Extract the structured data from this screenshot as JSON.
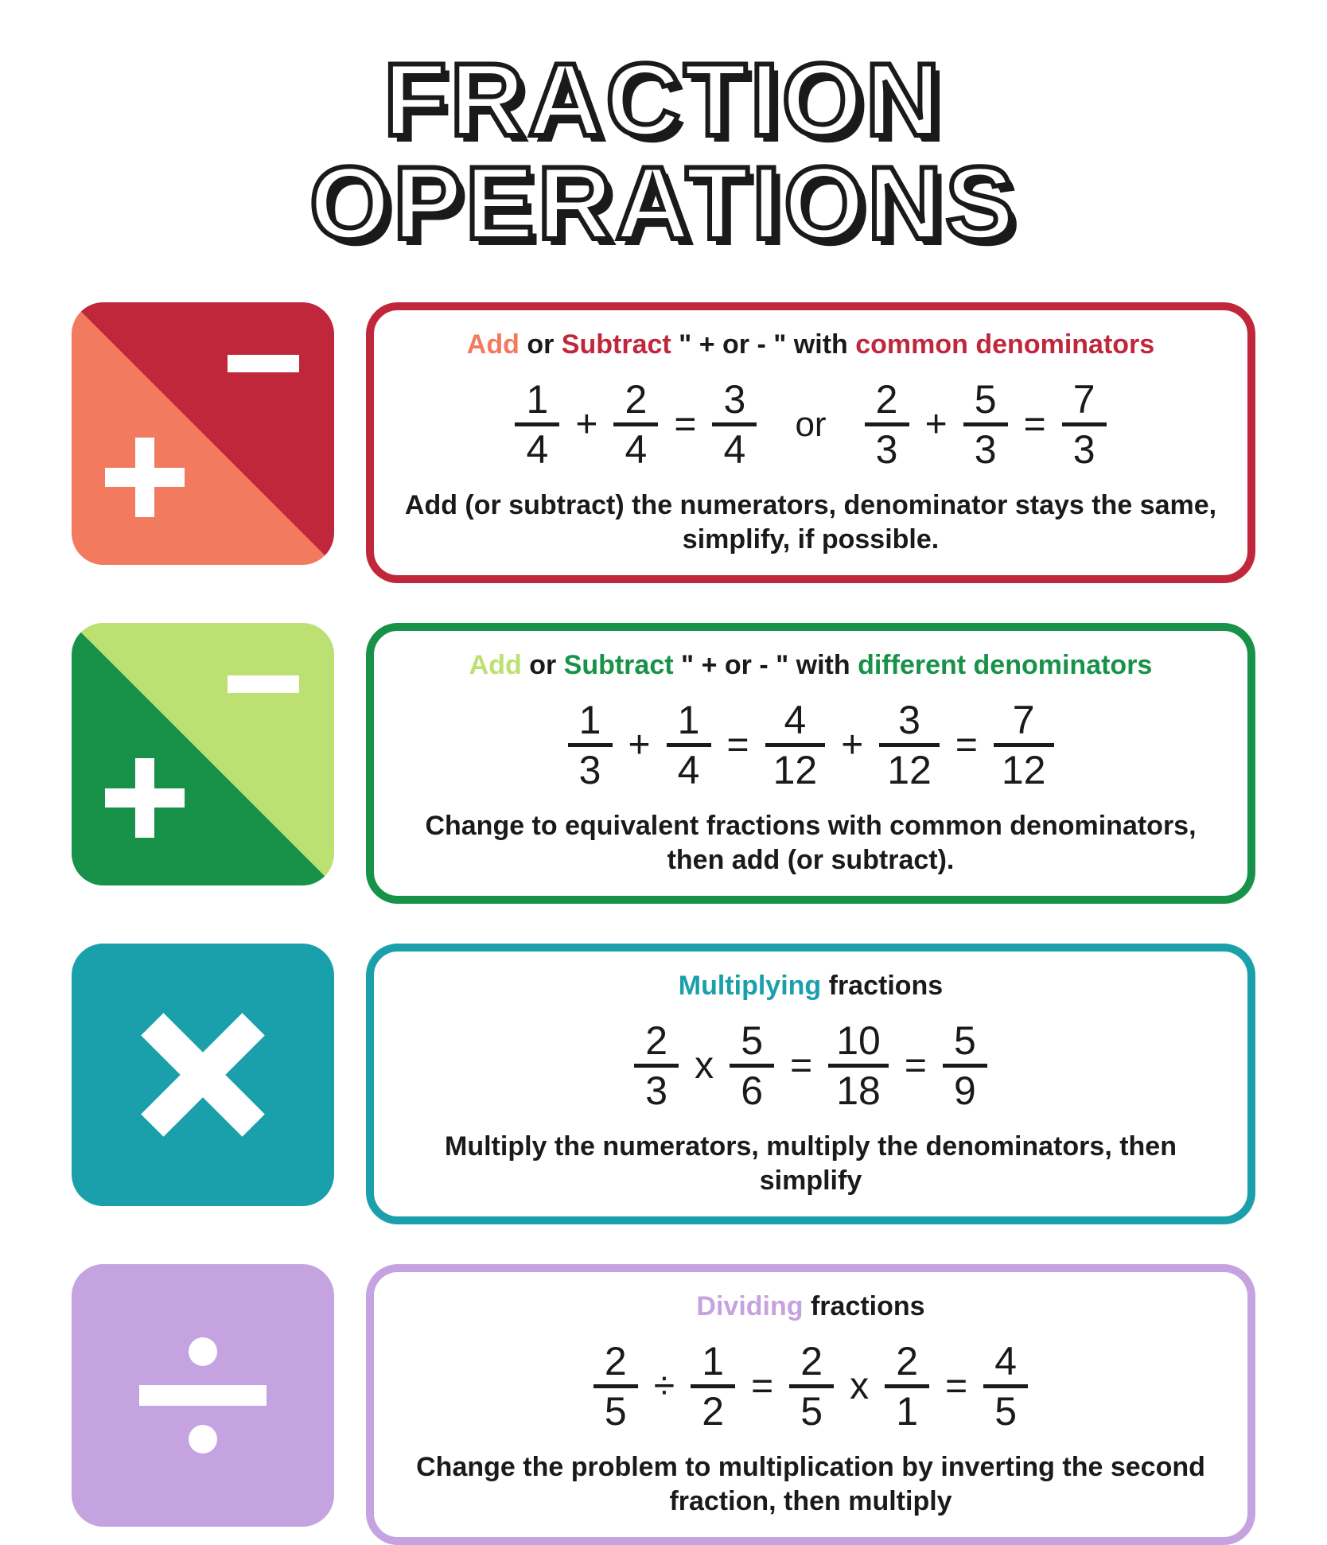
{
  "title": "FRACTION OPERATIONS",
  "colors": {
    "red_dark": "#c0273b",
    "red_light": "#f27a5e",
    "green_dark": "#179248",
    "green_light": "#bde073",
    "teal": "#1aa0ab",
    "purple": "#c5a3e0",
    "black": "#1a1a1a",
    "white": "#ffffff"
  },
  "rows": [
    {
      "id": "add-sub-common",
      "icon_type": "plusminus",
      "icon_color_a": "#f27a5e",
      "icon_color_b": "#c0273b",
      "border_color": "#c0273b",
      "heading_parts": [
        {
          "text": "Add ",
          "color": "#f27a5e"
        },
        {
          "text": "or ",
          "color": "#1a1a1a"
        },
        {
          "text": "Subtract ",
          "color": "#c0273b"
        },
        {
          "text": "\" + or - \" with ",
          "color": "#1a1a1a"
        },
        {
          "text": "common denominators",
          "color": "#c0273b"
        }
      ],
      "equations": [
        [
          {
            "type": "frac",
            "num": "1",
            "den": "4"
          },
          {
            "type": "op",
            "text": "+"
          },
          {
            "type": "frac",
            "num": "2",
            "den": "4"
          },
          {
            "type": "op",
            "text": "="
          },
          {
            "type": "frac",
            "num": "3",
            "den": "4"
          },
          {
            "type": "or",
            "text": "or"
          },
          {
            "type": "frac",
            "num": "2",
            "den": "3"
          },
          {
            "type": "op",
            "text": "+"
          },
          {
            "type": "frac",
            "num": "5",
            "den": "3"
          },
          {
            "type": "op",
            "text": "="
          },
          {
            "type": "frac",
            "num": "7",
            "den": "3"
          }
        ]
      ],
      "rule": "Add (or subtract) the numerators, denominator stays the same, simplify, if possible."
    },
    {
      "id": "add-sub-different",
      "icon_type": "plusminus",
      "icon_color_a": "#179248",
      "icon_color_b": "#bde073",
      "border_color": "#179248",
      "heading_parts": [
        {
          "text": "Add ",
          "color": "#bde073"
        },
        {
          "text": "or ",
          "color": "#1a1a1a"
        },
        {
          "text": "Subtract ",
          "color": "#179248"
        },
        {
          "text": "\" + or - \" with ",
          "color": "#1a1a1a"
        },
        {
          "text": "different denominators",
          "color": "#179248"
        }
      ],
      "equations": [
        [
          {
            "type": "frac",
            "num": "1",
            "den": "3"
          },
          {
            "type": "op",
            "text": "+"
          },
          {
            "type": "frac",
            "num": "1",
            "den": "4"
          },
          {
            "type": "op",
            "text": "="
          },
          {
            "type": "frac",
            "num": "4",
            "den": "12"
          },
          {
            "type": "op",
            "text": "+"
          },
          {
            "type": "frac",
            "num": "3",
            "den": "12"
          },
          {
            "type": "op",
            "text": "="
          },
          {
            "type": "frac",
            "num": "7",
            "den": "12"
          }
        ]
      ],
      "rule": "Change to equivalent fractions with common denominators, then add (or subtract)."
    },
    {
      "id": "multiply",
      "icon_type": "times",
      "icon_color_a": "#1aa0ab",
      "border_color": "#1aa0ab",
      "heading_parts": [
        {
          "text": "Multiplying ",
          "color": "#1aa0ab"
        },
        {
          "text": "fractions",
          "color": "#1a1a1a"
        }
      ],
      "equations": [
        [
          {
            "type": "frac",
            "num": "2",
            "den": "3"
          },
          {
            "type": "op",
            "text": "x"
          },
          {
            "type": "frac",
            "num": "5",
            "den": "6"
          },
          {
            "type": "op",
            "text": "="
          },
          {
            "type": "frac",
            "num": "10",
            "den": "18"
          },
          {
            "type": "op",
            "text": "="
          },
          {
            "type": "frac",
            "num": "5",
            "den": "9"
          }
        ]
      ],
      "rule": "Multiply the numerators, multiply the denominators, then simplify"
    },
    {
      "id": "divide",
      "icon_type": "divide",
      "icon_color_a": "#c5a3e0",
      "border_color": "#c5a3e0",
      "heading_parts": [
        {
          "text": "Dividing ",
          "color": "#c5a3e0"
        },
        {
          "text": "fractions",
          "color": "#1a1a1a"
        }
      ],
      "equations": [
        [
          {
            "type": "frac",
            "num": "2",
            "den": "5"
          },
          {
            "type": "op",
            "text": "÷"
          },
          {
            "type": "frac",
            "num": "1",
            "den": "2"
          },
          {
            "type": "op",
            "text": "="
          },
          {
            "type": "frac",
            "num": "2",
            "den": "5"
          },
          {
            "type": "op",
            "text": "x"
          },
          {
            "type": "frac",
            "num": "2",
            "den": "1"
          },
          {
            "type": "op",
            "text": "="
          },
          {
            "type": "frac",
            "num": "4",
            "den": "5"
          }
        ]
      ],
      "rule": "Change the problem to multiplication by inverting the second fraction, then multiply"
    }
  ]
}
